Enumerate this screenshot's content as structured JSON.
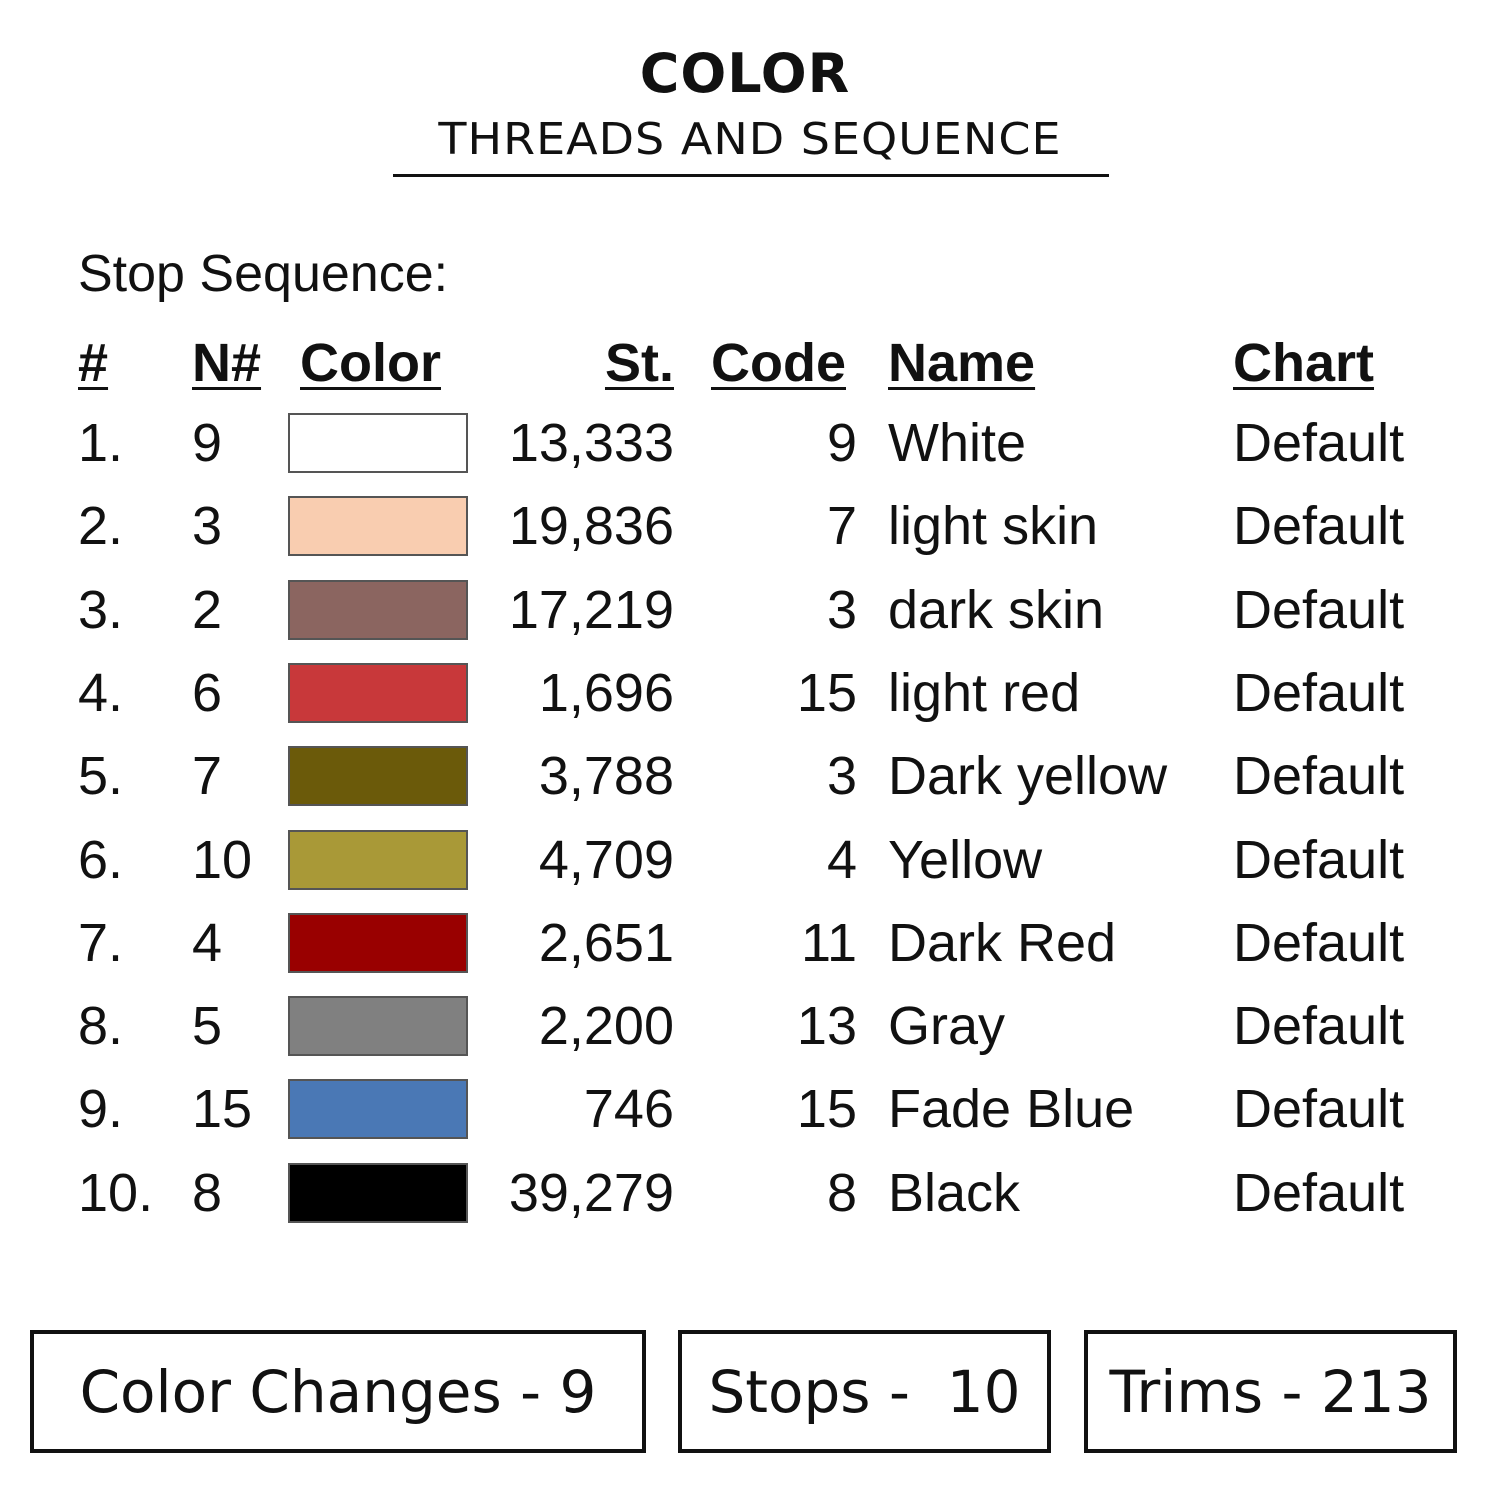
{
  "header": {
    "title": "COLOR",
    "subtitle": "THREADS AND SEQUENCE"
  },
  "section_label": "Stop Sequence:",
  "columns": [
    "#",
    "N#",
    "Color",
    "St.",
    "Code",
    "Name",
    "Chart"
  ],
  "rows": [
    {
      "num": "1.",
      "n": "9",
      "color": "#FFFFFF",
      "st": "13,333",
      "code": "9",
      "name": "White",
      "chart": "Default"
    },
    {
      "num": "2.",
      "n": "3",
      "color": "#F9CDB0",
      "st": "19,836",
      "code": "7",
      "name": "light skin",
      "chart": "Default"
    },
    {
      "num": "3.",
      "n": "2",
      "color": "#8B6560",
      "st": "17,219",
      "code": "3",
      "name": "dark skin",
      "chart": "Default"
    },
    {
      "num": "4.",
      "n": "6",
      "color": "#C8383A",
      "st": "1,696",
      "code": "15",
      "name": "light red",
      "chart": "Default"
    },
    {
      "num": "5.",
      "n": "7",
      "color": "#6B5A0A",
      "st": "3,788",
      "code": "3",
      "name": "Dark yellow",
      "chart": "Default"
    },
    {
      "num": "6.",
      "n": "10",
      "color": "#A99937",
      "st": "4,709",
      "code": "4",
      "name": "Yellow",
      "chart": "Default"
    },
    {
      "num": "7.",
      "n": "4",
      "color": "#990000",
      "st": "2,651",
      "code": "11",
      "name": "Dark Red",
      "chart": "Default"
    },
    {
      "num": "8.",
      "n": "5",
      "color": "#808080",
      "st": "2,200",
      "code": "13",
      "name": "Gray",
      "chart": "Default"
    },
    {
      "num": "9.",
      "n": "15",
      "color": "#4A78B5",
      "st": "746",
      "code": "15",
      "name": "Fade Blue",
      "chart": "Default"
    },
    {
      "num": "10.",
      "n": "8",
      "color": "#000000",
      "st": "39,279",
      "code": "8",
      "name": "Black",
      "chart": "Default"
    }
  ],
  "summary": {
    "color_changes": "Color Changes - 9",
    "stops": "Stops -  10",
    "trims": "Trims - 213"
  }
}
